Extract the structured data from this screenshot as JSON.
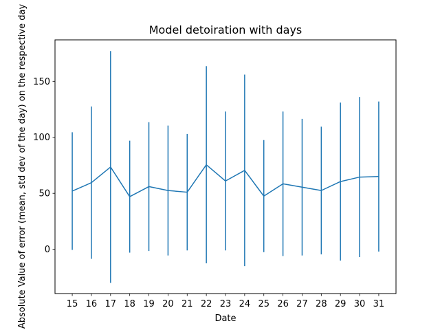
{
  "chart_data": {
    "type": "line",
    "title": "Model detoiration with days",
    "xlabel": "Date",
    "ylabel": "Absolute Value of error (mean, std dev of the day) on the respective day",
    "x": [
      15,
      16,
      17,
      18,
      19,
      20,
      21,
      22,
      23,
      24,
      25,
      26,
      27,
      28,
      29,
      30,
      31
    ],
    "series": [
      {
        "mean": [
          52,
          59.5,
          73.5,
          47,
          56,
          52.5,
          51,
          75.5,
          61,
          70.5,
          47.5,
          58.5,
          55.5,
          52.5,
          60.5,
          64.5,
          65
        ],
        "err": [
          52.5,
          68,
          103.5,
          50,
          57.5,
          58,
          52,
          88,
          62,
          85.5,
          50,
          64.5,
          61,
          57,
          70.5,
          71.5,
          67
        ]
      }
    ],
    "yticks": [
      0,
      50,
      100,
      150
    ],
    "ylim": [
      -39.5,
      187
    ],
    "xlim": [
      14.1,
      31.9
    ],
    "grid": false,
    "color": "#1f77b4"
  }
}
